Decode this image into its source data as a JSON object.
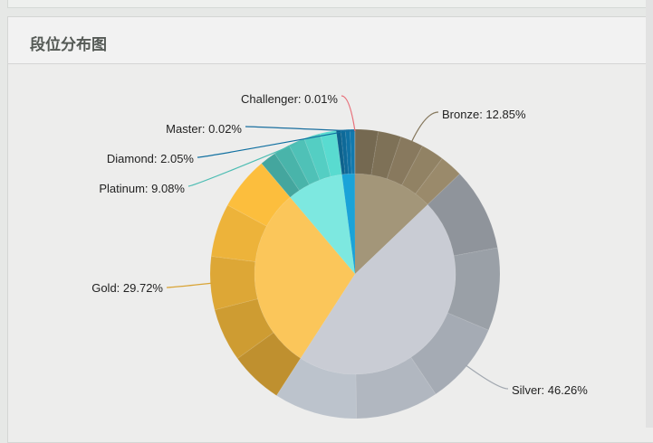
{
  "panel": {
    "title": "段位分布图"
  },
  "chart_data": {
    "type": "pie",
    "variant": "sunburst (inner pie with outer ring subdivisions)",
    "start": "top, clockwise",
    "series": [
      {
        "name": "Bronze",
        "value": 12.85,
        "label": "Bronze: 12.85%",
        "color": "#a39679",
        "ring_color": "#85775c"
      },
      {
        "name": "Silver",
        "value": 46.26,
        "label": "Silver: 46.26%",
        "color": "#c9ccd4",
        "ring_color": "#a2a8b0"
      },
      {
        "name": "Gold",
        "value": 29.72,
        "label": "Gold: 29.72%",
        "color": "#fbc65a",
        "ring_color": "#d9a435"
      },
      {
        "name": "Platinum",
        "value": 9.08,
        "label": "Platinum: 9.08%",
        "color": "#7de8e0",
        "ring_color": "#4dbdb3"
      },
      {
        "name": "Diamond",
        "value": 2.05,
        "label": "Diamond: 2.05%",
        "color": "#1aa3d8",
        "ring_color": "#0f6fa0"
      },
      {
        "name": "Master",
        "value": 0.02,
        "label": "Master: 0.02%",
        "color": "#1a6f9f",
        "ring_color": "#1a6f9f"
      },
      {
        "name": "Challenger",
        "value": 0.01,
        "label": "Challenger: 0.01%",
        "color": "#e8707a",
        "ring_color": "#e8707a"
      }
    ]
  }
}
